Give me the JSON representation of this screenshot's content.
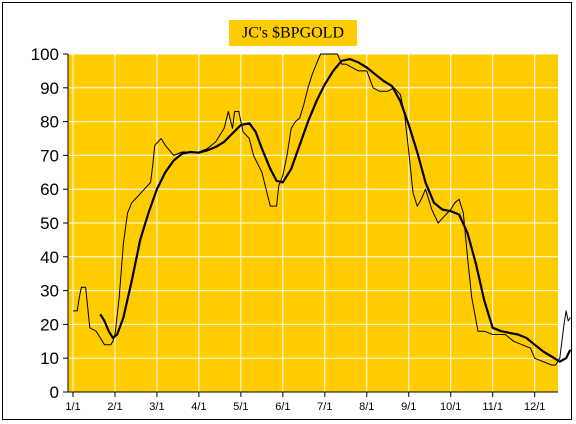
{
  "chart_data": {
    "type": "line",
    "title": "JC's $BPGOLD",
    "xlabel": "",
    "ylabel": "",
    "x_ticks": [
      "1/1",
      "2/1",
      "3/1",
      "4/1",
      "5/1",
      "6/1",
      "7/1",
      "8/1",
      "9/1",
      "10/1",
      "11/1",
      "12/1"
    ],
    "ylim": [
      0,
      100
    ],
    "y_ticks": [
      0,
      10,
      20,
      30,
      40,
      50,
      60,
      70,
      80,
      90,
      100
    ],
    "grid": true,
    "legend": "none",
    "colors": {
      "plot_background": "#FFCC00",
      "grid": "#FFFFFF",
      "series": "#000000",
      "title_box": "#FFCC00"
    },
    "series": [
      {
        "style": "thin",
        "points": [
          [
            0,
            24
          ],
          [
            0.1,
            24
          ],
          [
            0.15,
            28
          ],
          [
            0.2,
            31
          ],
          [
            0.3,
            31
          ],
          [
            0.35,
            25
          ],
          [
            0.4,
            19
          ],
          [
            0.55,
            18
          ],
          [
            0.65,
            16
          ],
          [
            0.75,
            14
          ],
          [
            0.9,
            14
          ],
          [
            0.95,
            15
          ],
          [
            1.0,
            17
          ],
          [
            1.1,
            28
          ],
          [
            1.2,
            44
          ],
          [
            1.3,
            53
          ],
          [
            1.4,
            56
          ],
          [
            1.55,
            58
          ],
          [
            1.7,
            60
          ],
          [
            1.85,
            62
          ],
          [
            1.9,
            67
          ],
          [
            1.95,
            73
          ],
          [
            2.1,
            75
          ],
          [
            2.2,
            73
          ],
          [
            2.4,
            70
          ],
          [
            2.6,
            71
          ],
          [
            2.8,
            71
          ],
          [
            3.0,
            71
          ],
          [
            3.2,
            72
          ],
          [
            3.4,
            74
          ],
          [
            3.6,
            78
          ],
          [
            3.7,
            83
          ],
          [
            3.8,
            78
          ],
          [
            3.85,
            83
          ],
          [
            3.95,
            83
          ],
          [
            4.05,
            77
          ],
          [
            4.2,
            75
          ],
          [
            4.3,
            70
          ],
          [
            4.5,
            65
          ],
          [
            4.6,
            60
          ],
          [
            4.7,
            55
          ],
          [
            4.85,
            55
          ],
          [
            4.9,
            61
          ],
          [
            5.0,
            64
          ],
          [
            5.1,
            70
          ],
          [
            5.2,
            78
          ],
          [
            5.3,
            80
          ],
          [
            5.4,
            81
          ],
          [
            5.5,
            85
          ],
          [
            5.6,
            90
          ],
          [
            5.7,
            94
          ],
          [
            5.8,
            97
          ],
          [
            5.9,
            100
          ],
          [
            6.3,
            100
          ],
          [
            6.4,
            97
          ],
          [
            6.5,
            97
          ],
          [
            6.8,
            95
          ],
          [
            7.0,
            95
          ],
          [
            7.15,
            90
          ],
          [
            7.3,
            89
          ],
          [
            7.5,
            89
          ],
          [
            7.65,
            90
          ],
          [
            7.8,
            88
          ],
          [
            7.9,
            82
          ],
          [
            8.0,
            71
          ],
          [
            8.1,
            59
          ],
          [
            8.2,
            55
          ],
          [
            8.3,
            57
          ],
          [
            8.4,
            60
          ],
          [
            8.55,
            54
          ],
          [
            8.7,
            50
          ],
          [
            8.85,
            52
          ],
          [
            9.0,
            54
          ],
          [
            9.1,
            56
          ],
          [
            9.2,
            57
          ],
          [
            9.3,
            53
          ],
          [
            9.4,
            40
          ],
          [
            9.5,
            28
          ],
          [
            9.65,
            18
          ],
          [
            9.8,
            18
          ],
          [
            10.0,
            17
          ],
          [
            10.2,
            17
          ],
          [
            10.3,
            17
          ],
          [
            10.5,
            15
          ],
          [
            10.7,
            14
          ],
          [
            10.9,
            13
          ],
          [
            11.0,
            10
          ],
          [
            11.2,
            9
          ],
          [
            11.4,
            8
          ],
          [
            11.5,
            8
          ],
          [
            11.6,
            10
          ],
          [
            11.7,
            20
          ],
          [
            11.75,
            24
          ],
          [
            11.8,
            21
          ],
          [
            11.85,
            22
          ]
        ]
      },
      {
        "style": "thick",
        "points": [
          [
            0.65,
            23
          ],
          [
            0.75,
            21
          ],
          [
            0.85,
            18
          ],
          [
            0.95,
            16
          ],
          [
            1.05,
            17
          ],
          [
            1.2,
            22
          ],
          [
            1.4,
            33
          ],
          [
            1.6,
            45
          ],
          [
            1.8,
            53
          ],
          [
            2.0,
            60
          ],
          [
            2.2,
            65
          ],
          [
            2.4,
            68.5
          ],
          [
            2.6,
            70.5
          ],
          [
            2.8,
            71
          ],
          [
            3.0,
            70.8
          ],
          [
            3.2,
            71.5
          ],
          [
            3.4,
            72.5
          ],
          [
            3.6,
            74
          ],
          [
            3.8,
            76.5
          ],
          [
            4.0,
            79
          ],
          [
            4.2,
            79.5
          ],
          [
            4.35,
            77
          ],
          [
            4.5,
            72
          ],
          [
            4.7,
            66
          ],
          [
            4.85,
            62.5
          ],
          [
            5.0,
            62
          ],
          [
            5.2,
            66
          ],
          [
            5.4,
            73
          ],
          [
            5.6,
            80
          ],
          [
            5.8,
            86
          ],
          [
            6.0,
            91
          ],
          [
            6.2,
            95
          ],
          [
            6.4,
            98
          ],
          [
            6.6,
            98.5
          ],
          [
            6.8,
            97.5
          ],
          [
            7.0,
            96
          ],
          [
            7.2,
            94
          ],
          [
            7.4,
            92
          ],
          [
            7.6,
            90.5
          ],
          [
            7.8,
            86
          ],
          [
            8.0,
            79
          ],
          [
            8.2,
            71
          ],
          [
            8.4,
            62
          ],
          [
            8.6,
            56
          ],
          [
            8.8,
            54
          ],
          [
            9.0,
            53.5
          ],
          [
            9.2,
            52.5
          ],
          [
            9.4,
            47
          ],
          [
            9.6,
            38
          ],
          [
            9.8,
            27
          ],
          [
            10.0,
            19
          ],
          [
            10.2,
            18
          ],
          [
            10.4,
            17.5
          ],
          [
            10.6,
            17
          ],
          [
            10.8,
            16
          ],
          [
            11.0,
            14
          ],
          [
            11.2,
            12
          ],
          [
            11.4,
            10.5
          ],
          [
            11.6,
            9
          ],
          [
            11.75,
            10
          ],
          [
            11.85,
            12.5
          ]
        ]
      }
    ]
  }
}
